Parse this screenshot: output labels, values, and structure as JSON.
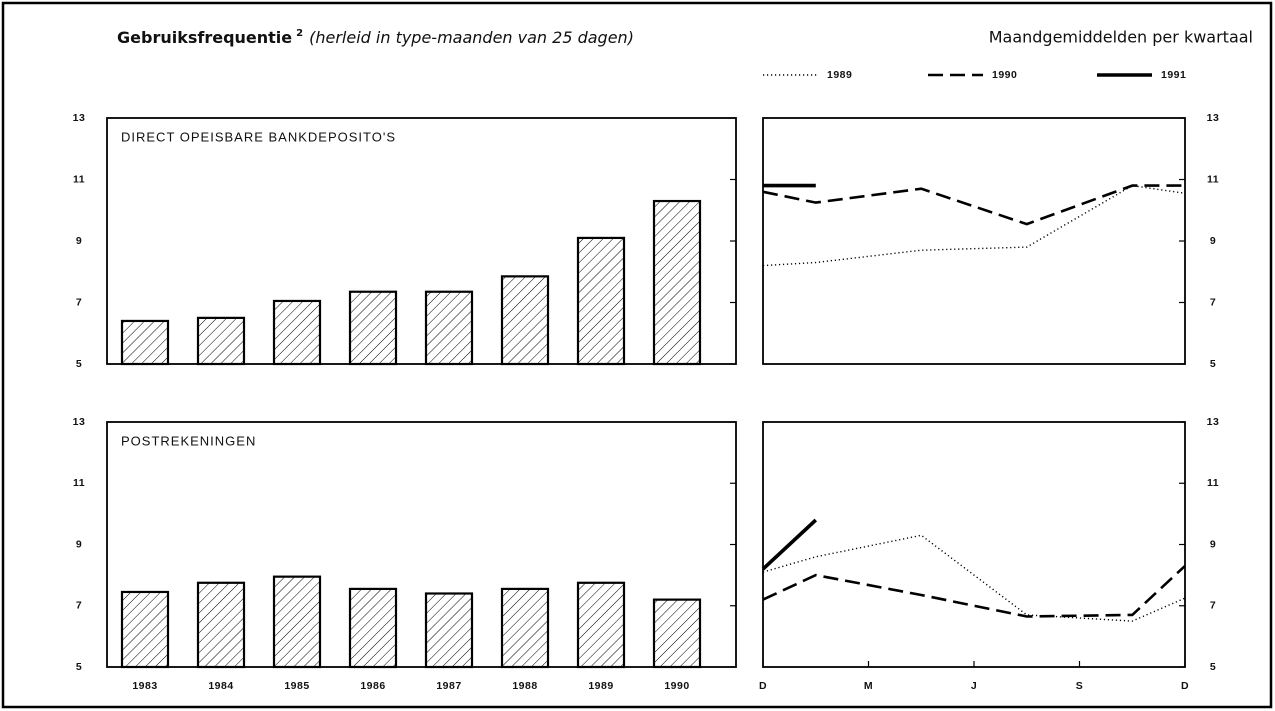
{
  "header": {
    "title": "Gebruiksfrequentie",
    "footnote": "2",
    "subtitle": "(herleid in type-maanden van 25 dagen)",
    "right_title": "Maandgemiddelden per kwartaal"
  },
  "chart_data": [
    {
      "type": "bar",
      "title": "DIRECT OPEISBARE BANKDEPOSITO'S",
      "categories": [
        "1983",
        "1984",
        "1985",
        "1986",
        "1987",
        "1988",
        "1989",
        "1990"
      ],
      "values": [
        6.4,
        6.5,
        7.05,
        7.35,
        7.35,
        7.85,
        9.1,
        10.3
      ],
      "color": "#000000",
      "ylim": [
        5,
        13
      ],
      "yticks": [
        5,
        7,
        9,
        11,
        13
      ],
      "yaxis_side": "left"
    },
    {
      "type": "line",
      "x": [
        0,
        1.5,
        4.5,
        7.5,
        10.5,
        12
      ],
      "xlim": [
        0,
        12
      ],
      "ylim": [
        5,
        13
      ],
      "yticks": [
        5,
        7,
        9,
        11,
        13
      ],
      "yaxis_side": "right",
      "series": [
        {
          "name": "1989",
          "color": "#000000",
          "style": "dotted",
          "values": [
            8.2,
            8.3,
            8.7,
            8.8,
            10.8,
            10.55
          ]
        },
        {
          "name": "1990",
          "color": "#000000",
          "style": "dashed",
          "values": [
            10.6,
            10.25,
            10.7,
            9.55,
            10.8,
            10.8
          ]
        },
        {
          "name": "1991",
          "color": "#000000",
          "style": "solid",
          "values": [
            10.8,
            10.8,
            null,
            null,
            null,
            null
          ]
        }
      ]
    },
    {
      "type": "bar",
      "title": "POSTREKENINGEN",
      "categories": [
        "1983",
        "1984",
        "1985",
        "1986",
        "1987",
        "1988",
        "1989",
        "1990"
      ],
      "values": [
        7.45,
        7.75,
        7.95,
        7.55,
        7.4,
        7.55,
        7.75,
        7.2
      ],
      "color": "#000000",
      "ylim": [
        5,
        13
      ],
      "yticks": [
        5,
        7,
        9,
        11,
        13
      ],
      "yaxis_side": "left"
    },
    {
      "type": "line",
      "x": [
        0,
        1.5,
        4.5,
        7.5,
        10.5,
        12
      ],
      "xlim": [
        0,
        12
      ],
      "ylim": [
        5,
        13
      ],
      "yticks": [
        5,
        7,
        9,
        11,
        13
      ],
      "yaxis_side": "right",
      "xticks": [
        {
          "value": 0,
          "label": "D"
        },
        {
          "value": 3,
          "label": "M"
        },
        {
          "value": 6,
          "label": "J"
        },
        {
          "value": 9,
          "label": "S"
        },
        {
          "value": 12,
          "label": "D"
        }
      ],
      "series": [
        {
          "color": "#000000",
          "style": "dotted",
          "values": [
            8.1,
            8.6,
            9.3,
            6.7,
            6.5,
            7.25
          ]
        },
        {
          "color": "#000000",
          "style": "dashed",
          "values": [
            7.2,
            8.0,
            7.35,
            6.65,
            6.7,
            8.3
          ]
        },
        {
          "color": "#000000",
          "style": "solid",
          "values": [
            8.2,
            9.8,
            null,
            null,
            null,
            null
          ]
        }
      ]
    }
  ]
}
